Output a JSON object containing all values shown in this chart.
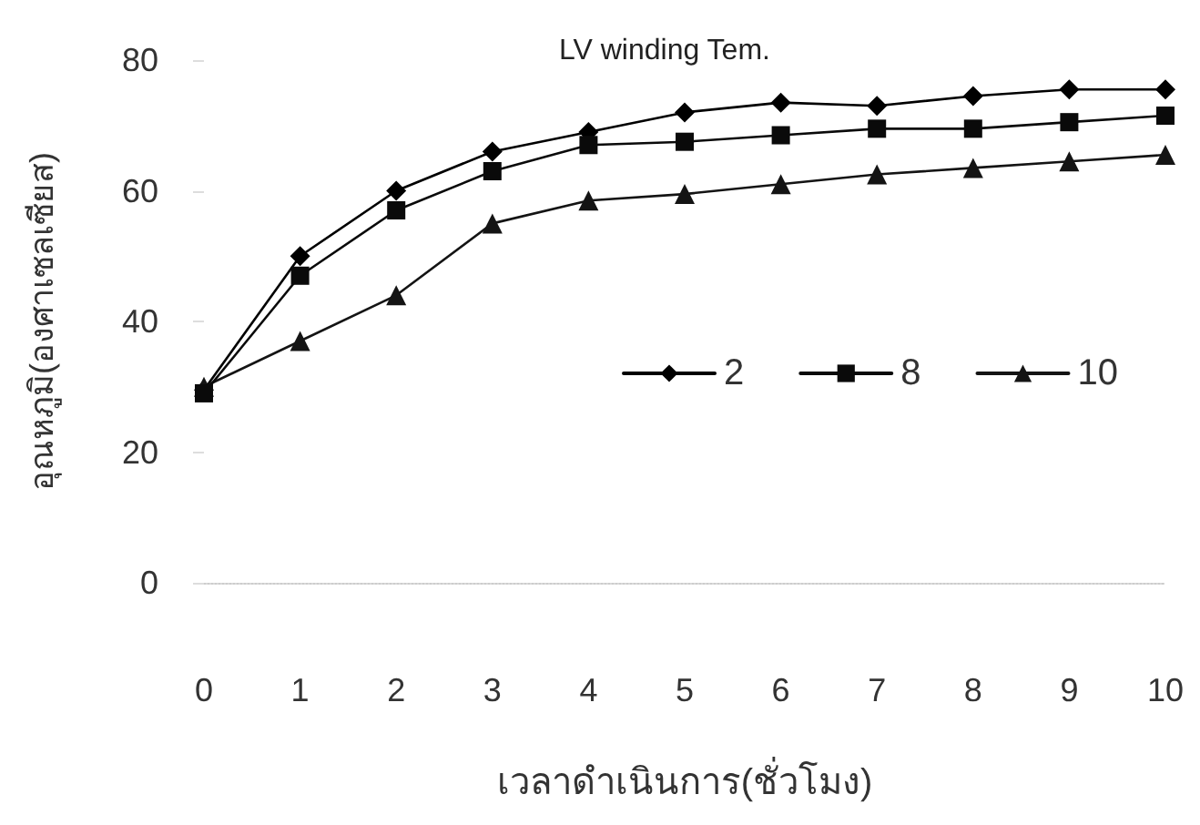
{
  "chart_data": {
    "type": "line",
    "title": "LV winding Tem.",
    "xlabel": "เวลาดำเนินการ(ชั่วโมง)",
    "ylabel": "อุณหภูมิ(องศาเซลเซียส)",
    "categories": [
      "0",
      "1",
      "2",
      "3",
      "4",
      "5",
      "6",
      "7",
      "8",
      "9",
      "10"
    ],
    "series": [
      {
        "name": "2",
        "color": "#000000",
        "marker": "diamond",
        "values": [
          29.5,
          50,
          60,
          66,
          69,
          72,
          73.5,
          73,
          74.5,
          75.5,
          75.5
        ]
      },
      {
        "name": "8",
        "color": "#0a0a0a",
        "marker": "square",
        "values": [
          29,
          47,
          57,
          63,
          67,
          67.5,
          68.5,
          69.5,
          69.5,
          70.5,
          71.5
        ]
      },
      {
        "name": "10",
        "color": "#141414",
        "marker": "triangle",
        "values": [
          30,
          37,
          44,
          55,
          58.5,
          59.5,
          61,
          62.5,
          63.5,
          64.5,
          65.5
        ]
      }
    ],
    "ylim": [
      0,
      80
    ],
    "yticks": [
      0,
      20,
      40,
      60,
      80
    ],
    "grid": false,
    "legend": "right",
    "line_style": "solid"
  }
}
